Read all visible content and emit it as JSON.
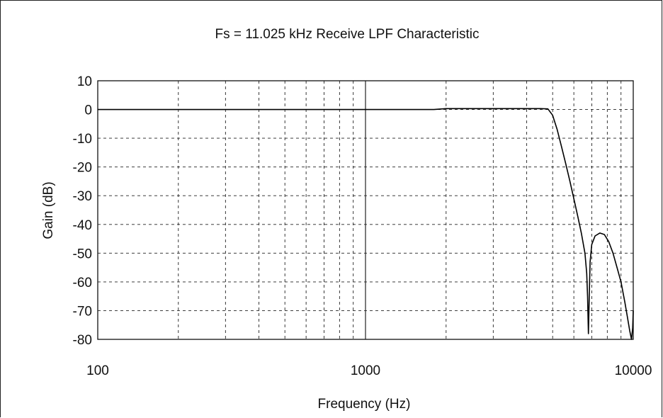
{
  "chart_data": {
    "type": "line",
    "title": "Fs = 11.025 kHz Receive LPF Characteristic",
    "xlabel": "Frequency (Hz)",
    "ylabel": "Gain (dB)",
    "xscale": "log",
    "xlim": [
      100,
      10000
    ],
    "ylim": [
      -80,
      10
    ],
    "grid": true,
    "x_ticks": [
      "100",
      "1000",
      "10000"
    ],
    "y_ticks": [
      "10",
      "0",
      "-10",
      "-20",
      "-30",
      "-40",
      "-50",
      "-60",
      "-70",
      "-80"
    ],
    "series": [
      {
        "x": [
          100,
          200,
          500,
          1000,
          1500,
          1800,
          2000,
          2500,
          3000,
          3500,
          4000,
          4500,
          4800,
          5000,
          5200,
          5400,
          5600,
          5800,
          6000,
          6200,
          6400,
          6600,
          6700,
          6750,
          6800,
          6850,
          6900,
          7000,
          7200,
          7500,
          7800,
          8100,
          8400,
          8700,
          9000,
          9300,
          9500,
          9700,
          9850,
          9950,
          10000
        ],
        "y": [
          0,
          0,
          0,
          0,
          0,
          0,
          0.3,
          0.3,
          0.3,
          0.3,
          0.3,
          0.3,
          0.2,
          -2,
          -7,
          -13,
          -19,
          -25,
          -31,
          -37,
          -43,
          -50,
          -57,
          -65,
          -78,
          -65,
          -53,
          -47,
          -44,
          -43,
          -43.5,
          -46,
          -50,
          -55,
          -60,
          -67,
          -72,
          -77,
          -80,
          -76,
          -70
        ]
      }
    ]
  }
}
